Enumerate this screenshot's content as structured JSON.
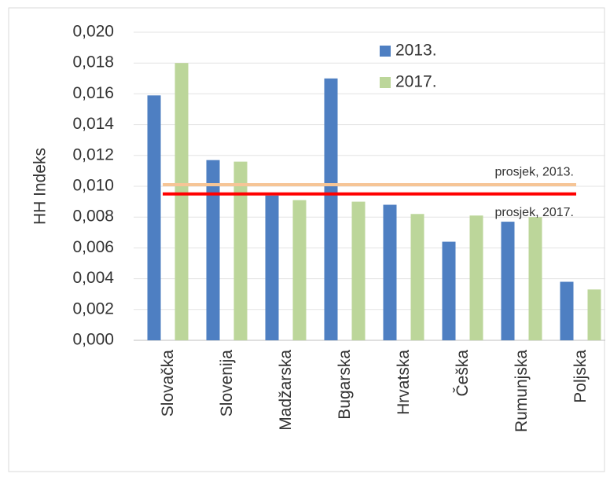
{
  "chart_data": {
    "type": "bar",
    "y_label": "HH Indeks",
    "categories": [
      "Slovačka",
      "Slovenija",
      "Madžarska",
      "Bugarska",
      "Hrvatska",
      "Češka",
      "Rumunjska",
      "Poljska"
    ],
    "series": [
      {
        "name": "2013.",
        "color": "#4e7fc2",
        "values": [
          0.0159,
          0.0117,
          0.0094,
          0.017,
          0.0088,
          0.0064,
          0.0077,
          0.0038
        ]
      },
      {
        "name": "2017.",
        "color": "#bcd69a",
        "values": [
          0.018,
          0.0116,
          0.0091,
          0.009,
          0.0082,
          0.0081,
          0.008,
          0.0033
        ]
      }
    ],
    "reference_lines": [
      {
        "name": "prosjek, 2013.",
        "value": 0.0101,
        "color": "#f6c596"
      },
      {
        "name": "prosjek, 2017.",
        "value": 0.0095,
        "color": "#ff0000"
      }
    ],
    "ylim": [
      0,
      0.02
    ],
    "yticks": [
      {
        "value": 0,
        "label": "0,000"
      },
      {
        "value": 0.002,
        "label": "0,002"
      },
      {
        "value": 0.004,
        "label": "0,004"
      },
      {
        "value": 0.006,
        "label": "0,006"
      },
      {
        "value": 0.008,
        "label": "0,008"
      },
      {
        "value": 0.01,
        "label": "0,010"
      },
      {
        "value": 0.012,
        "label": "0,012"
      },
      {
        "value": 0.014,
        "label": "0,014"
      },
      {
        "value": 0.016,
        "label": "0,016"
      },
      {
        "value": 0.018,
        "label": "0,018"
      },
      {
        "value": 0.02,
        "label": "0,020"
      }
    ],
    "grid": true
  }
}
